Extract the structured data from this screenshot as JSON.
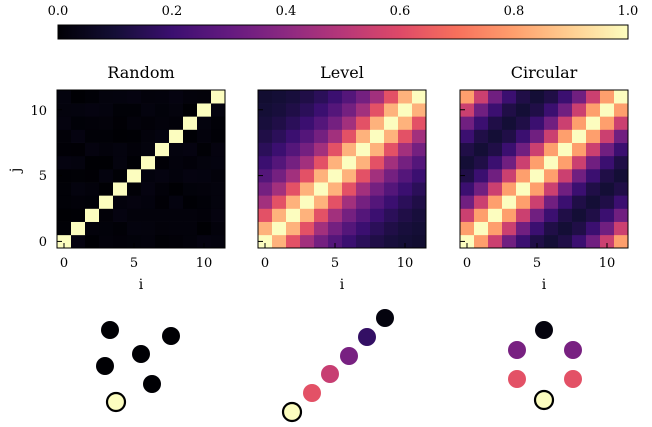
{
  "colorbar": {
    "colormap": "magma",
    "tick_labels": [
      "0.0",
      "0.2",
      "0.4",
      "0.6",
      "0.8",
      "1.0"
    ],
    "range": [
      0,
      1
    ]
  },
  "chart_data": [
    {
      "type": "heatmap",
      "title": "Random",
      "xlabel": "i",
      "ylabel": "j",
      "x": [
        0,
        1,
        2,
        3,
        4,
        5,
        6,
        7,
        8,
        9,
        10,
        11
      ],
      "y": [
        0,
        1,
        2,
        3,
        4,
        5,
        6,
        7,
        8,
        9,
        10,
        11
      ],
      "x_tick_labels": [
        "0",
        "5",
        "10"
      ],
      "y_tick_labels": [
        "0",
        "5",
        "10"
      ],
      "value_range": [
        0,
        1
      ],
      "description_of_values": "1.0 on the diagonal i = j, approximately 0.0 elsewhere",
      "cell_rule": "random",
      "diagonal_value": 1.0,
      "off_diagonal_value": 0.0
    },
    {
      "type": "heatmap",
      "title": "Level",
      "xlabel": "i",
      "ylabel": "",
      "x": [
        0,
        1,
        2,
        3,
        4,
        5,
        6,
        7,
        8,
        9,
        10,
        11
      ],
      "y": [
        0,
        1,
        2,
        3,
        4,
        5,
        6,
        7,
        8,
        9,
        10,
        11
      ],
      "x_tick_labels": [
        "0",
        "5",
        "10"
      ],
      "value_range": [
        0,
        1
      ],
      "cell_rule": "level",
      "diagonal_value": 1.0,
      "neighbor_values": [
        1.0,
        0.84,
        0.62,
        0.45,
        0.34,
        0.26,
        0.2,
        0.16,
        0.13,
        0.11,
        0.1,
        0.09
      ]
    },
    {
      "type": "heatmap",
      "title": "Circular",
      "xlabel": "i",
      "ylabel": "",
      "x": [
        0,
        1,
        2,
        3,
        4,
        5,
        6,
        7,
        8,
        9,
        10,
        11
      ],
      "y": [
        0,
        1,
        2,
        3,
        4,
        5,
        6,
        7,
        8,
        9,
        10,
        11
      ],
      "x_tick_labels": [
        "0",
        "5",
        "10"
      ],
      "value_range": [
        0,
        1
      ],
      "cell_rule": "circular",
      "diagonal_value": 1.0,
      "circular_distance_values": [
        1.0,
        0.8,
        0.55,
        0.33,
        0.2,
        0.13,
        0.1
      ]
    }
  ],
  "point_diagrams": [
    {
      "name": "random-points",
      "points": [
        {
          "value": 1.0,
          "highlight": true
        },
        {
          "value": 0.0
        },
        {
          "value": 0.0
        },
        {
          "value": 0.0
        },
        {
          "value": 0.0
        },
        {
          "value": 0.0
        }
      ]
    },
    {
      "name": "level-points",
      "points": [
        {
          "value": 1.0,
          "highlight": true
        },
        {
          "value": 0.62
        },
        {
          "value": 0.54
        },
        {
          "value": 0.35
        },
        {
          "value": 0.18
        },
        {
          "value": 0.02
        }
      ]
    },
    {
      "name": "circular-points",
      "points": [
        {
          "value": 1.0,
          "highlight": true
        },
        {
          "value": 0.62
        },
        {
          "value": 0.62
        },
        {
          "value": 0.35
        },
        {
          "value": 0.35
        },
        {
          "value": 0.02
        }
      ]
    }
  ]
}
